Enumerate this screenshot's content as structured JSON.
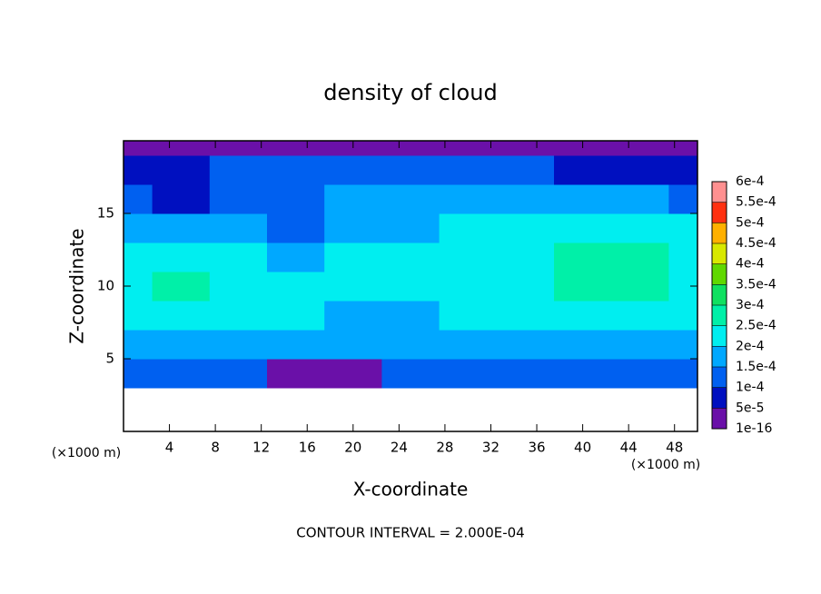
{
  "chart_data": {
    "type": "contour",
    "title": "density of cloud",
    "xlabel": "X-coordinate",
    "ylabel": "Z-coordinate",
    "x_unit": "(×1000 m)",
    "y_unit": "(×1000 m)",
    "annotation": "CONTOUR INTERVAL = 2.000E-04",
    "x": [
      0,
      5,
      10,
      15,
      20,
      25,
      30,
      35,
      40,
      45,
      50
    ],
    "y": [
      0,
      2,
      4,
      6,
      8,
      10,
      12,
      14,
      16,
      18,
      20
    ],
    "z": [
      [
        null,
        null,
        null,
        null,
        null,
        null,
        null,
        null,
        null,
        null,
        null
      ],
      [
        null,
        null,
        null,
        null,
        null,
        null,
        null,
        null,
        null,
        null,
        null
      ],
      [
        0.00012,
        0.00013,
        0.00013,
        3e-05,
        3e-05,
        0.00012,
        0.00012,
        0.00012,
        0.00012,
        0.00013,
        0.00012
      ],
      [
        0.00018,
        0.00018,
        0.00018,
        0.00017,
        0.00016,
        0.00017,
        0.00018,
        0.00019,
        0.00019,
        0.00019,
        0.00018
      ],
      [
        0.00022,
        0.00023,
        0.00022,
        0.0002,
        0.00018,
        0.00019,
        0.0002,
        0.00021,
        0.00021,
        0.00022,
        0.00022
      ],
      [
        0.00024,
        0.00026,
        0.00024,
        0.0002,
        0.00021,
        0.00023,
        0.00023,
        0.00023,
        0.00025,
        0.00026,
        0.00024
      ],
      [
        0.00023,
        0.00024,
        0.00022,
        0.00018,
        0.0002,
        0.00022,
        0.00023,
        0.00023,
        0.00025,
        0.00026,
        0.00024
      ],
      [
        0.00019,
        0.00018,
        0.00016,
        0.00013,
        0.00017,
        0.00019,
        0.0002,
        0.00021,
        0.00021,
        0.00021,
        0.0002
      ],
      [
        0.00012,
        9e-05,
        0.00011,
        0.0001,
        0.00015,
        0.00017,
        0.00017,
        0.00017,
        0.00016,
        0.00015,
        0.00013
      ],
      [
        7e-05,
        8e-05,
        0.0001,
        0.00011,
        0.00012,
        0.00012,
        0.00011,
        0.0001,
        8e-05,
        7e-05,
        6e-05
      ],
      [
        4e-05,
        4e-05,
        4e-05,
        4e-05,
        4e-05,
        4e-05,
        4e-05,
        4e-05,
        3e-05,
        3e-05,
        3e-05
      ]
    ],
    "xlim": [
      0,
      50
    ],
    "ylim": [
      0,
      20
    ],
    "xticks": [
      4,
      8,
      12,
      16,
      20,
      24,
      28,
      32,
      36,
      40,
      44,
      48
    ],
    "yticks": [
      5,
      10,
      15
    ],
    "colorbar": {
      "ticks": [
        {
          "value": 1e-16,
          "label": "1e-16"
        },
        {
          "value": 5e-05,
          "label": "5e-5"
        },
        {
          "value": 0.0001,
          "label": "1e-4"
        },
        {
          "value": 0.00015,
          "label": "1.5e-4"
        },
        {
          "value": 0.0002,
          "label": "2e-4"
        },
        {
          "value": 0.00025,
          "label": "2.5e-4"
        },
        {
          "value": 0.0003,
          "label": "3e-4"
        },
        {
          "value": 0.00035,
          "label": "3.5e-4"
        },
        {
          "value": 0.0004,
          "label": "4e-4"
        },
        {
          "value": 0.00045,
          "label": "4.5e-4"
        },
        {
          "value": 0.0005,
          "label": "5e-4"
        },
        {
          "value": 0.00055,
          "label": "5.5e-4"
        },
        {
          "value": 0.0006,
          "label": "6e-4"
        }
      ],
      "colors": [
        "#6a10a8",
        "#0010c0",
        "#0060f0",
        "#00a8ff",
        "#00eef0",
        "#00f0a8",
        "#10e060",
        "#60d800",
        "#d8e800",
        "#ffb000",
        "#ff3010",
        "#ff9090"
      ]
    }
  }
}
